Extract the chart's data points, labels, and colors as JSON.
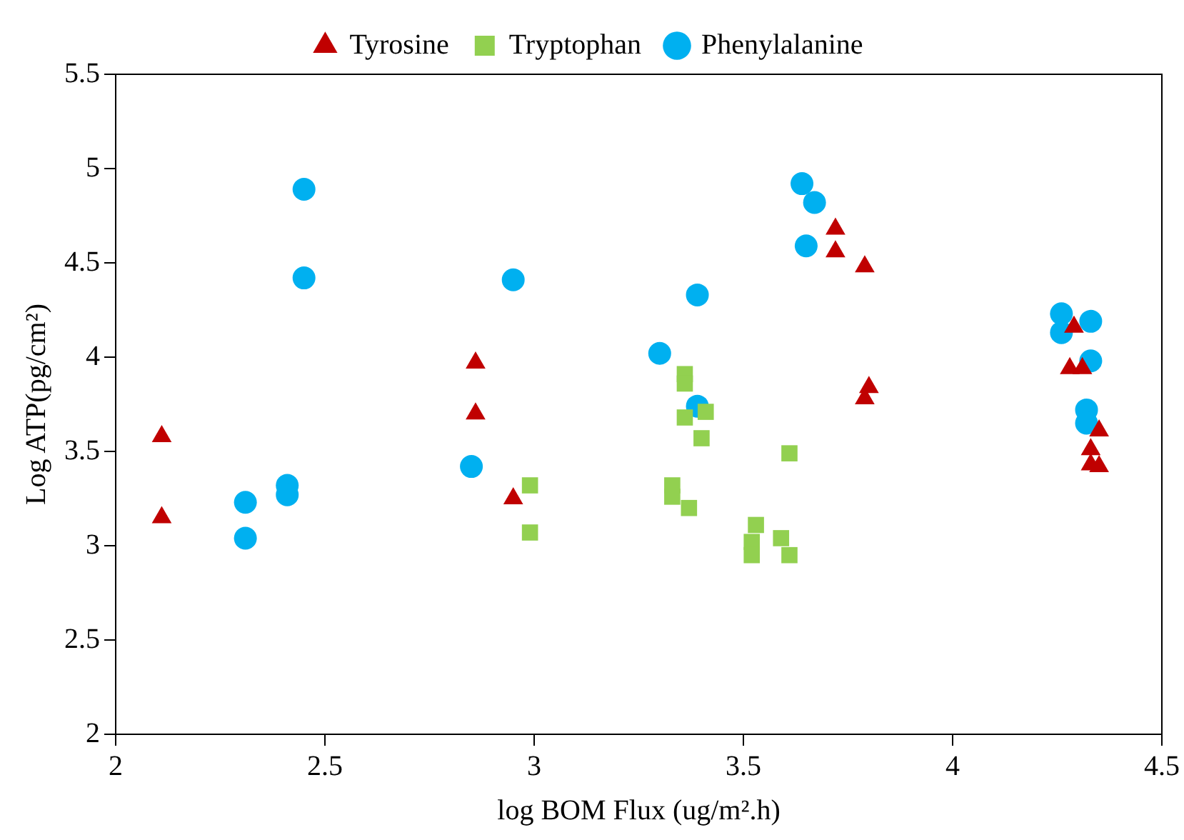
{
  "chart_data": {
    "type": "scatter",
    "xlabel": "log BOM Flux (ug/m².h)",
    "ylabel": "Log ATP(pg/cm²)",
    "xlim": [
      2,
      4.5
    ],
    "xticks": [
      2,
      2.5,
      3,
      3.5,
      4,
      4.5
    ],
    "ylim": [
      2,
      5.5
    ],
    "yticks": [
      2,
      2.5,
      3,
      3.5,
      4,
      4.5,
      5,
      5.5
    ],
    "grid": false,
    "legend": "top",
    "series": [
      {
        "name": "Tyrosine",
        "color": "#c00000",
        "marker": "triangle",
        "x": [
          2.11,
          2.11,
          2.86,
          2.86,
          2.95,
          3.72,
          3.72,
          3.79,
          3.8,
          3.79,
          4.29,
          4.28,
          4.31,
          4.35,
          4.33,
          4.33,
          4.35
        ],
        "values": [
          3.58,
          3.15,
          3.97,
          3.7,
          3.25,
          4.68,
          4.56,
          4.48,
          3.84,
          3.78,
          4.16,
          3.94,
          3.94,
          3.61,
          3.51,
          3.43,
          3.42
        ]
      },
      {
        "name": "Tryptophan",
        "color": "#92d050",
        "marker": "square",
        "x": [
          2.99,
          2.99,
          3.36,
          3.36,
          3.36,
          3.41,
          3.4,
          3.33,
          3.33,
          3.37,
          3.61,
          3.53,
          3.52,
          3.52,
          3.59,
          3.61
        ],
        "values": [
          3.32,
          3.07,
          3.91,
          3.86,
          3.68,
          3.71,
          3.57,
          3.32,
          3.26,
          3.2,
          3.49,
          3.11,
          3.02,
          2.95,
          3.04,
          2.95
        ]
      },
      {
        "name": "Phenylalanine",
        "color": "#00b0f0",
        "marker": "circle",
        "x": [
          2.45,
          2.45,
          2.31,
          2.31,
          2.41,
          2.41,
          2.85,
          2.95,
          3.3,
          3.39,
          3.39,
          3.64,
          3.67,
          3.65,
          4.26,
          4.26,
          4.33,
          4.33,
          4.32,
          4.32
        ],
        "values": [
          4.89,
          4.42,
          3.23,
          3.04,
          3.32,
          3.27,
          3.42,
          4.41,
          4.02,
          4.33,
          3.74,
          4.92,
          4.82,
          4.59,
          4.23,
          4.13,
          4.19,
          3.98,
          3.72,
          3.65
        ]
      }
    ]
  }
}
